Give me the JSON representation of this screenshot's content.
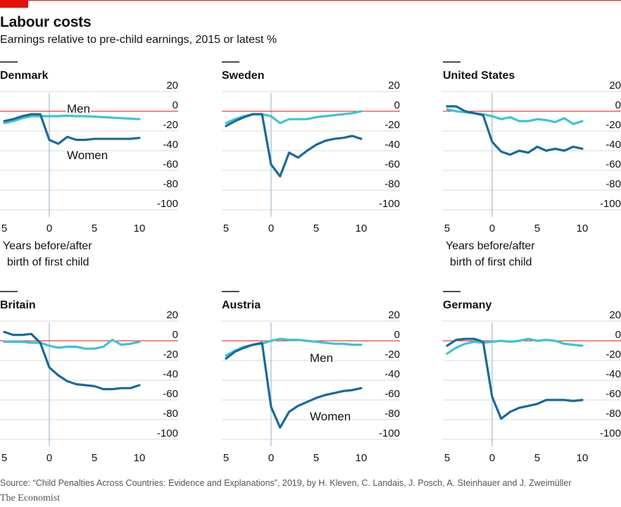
{
  "header": {
    "title": "Labour costs",
    "subtitle": "Earnings relative to pre-child earnings, 2015 or latest %"
  },
  "footer": {
    "source": "Source: “Child Penalties Across Countries: Evidence and Explanations”, 2019, by H. Kleven, C. Landais, J. Posch, A. Steinhauer and J. Zweimüller",
    "brand": "The Economist"
  },
  "colors": {
    "women": "#1a6a9a",
    "men": "#3ec3d5",
    "zero_line": "#e3120b",
    "event_line": "#a9bfd4",
    "grid": "#d9d9d9",
    "accent": "#e3120b"
  },
  "chart_data": [
    {
      "type": "line",
      "title": "Denmark",
      "xlabel": "Years before/after birth of first child",
      "x_ticks": [
        "5",
        "0",
        "5",
        "10"
      ],
      "xlim": [
        -5,
        10
      ],
      "ylim": [
        -100,
        20
      ],
      "y_ticks": [
        "20",
        "0",
        "-20",
        "-40",
        "-60",
        "-80",
        "-100"
      ],
      "annotations": [
        "Men",
        "Women"
      ],
      "series": [
        {
          "name": "Men",
          "x": [
            -5,
            -4,
            -3,
            -2,
            -1,
            0,
            1,
            2,
            3,
            4,
            5,
            6,
            7,
            8,
            9,
            10
          ],
          "values": [
            -12,
            -10,
            -7,
            -5,
            -5,
            -5,
            -5,
            -4.5,
            -5,
            -5,
            -5.5,
            -6,
            -6.5,
            -7,
            -7.5,
            -8
          ]
        },
        {
          "name": "Women",
          "x": [
            -5,
            -4,
            -3,
            -2,
            -1,
            0,
            1,
            2,
            3,
            4,
            5,
            6,
            7,
            8,
            9,
            10
          ],
          "values": [
            -10,
            -8,
            -5,
            -3,
            -3,
            -29,
            -33,
            -26,
            -29,
            -29,
            -28,
            -28,
            -28,
            -28,
            -28,
            -27
          ]
        }
      ]
    },
    {
      "type": "line",
      "title": "Sweden",
      "xlabel": "",
      "x_ticks": [
        "5",
        "0",
        "5",
        "10"
      ],
      "xlim": [
        -5,
        10
      ],
      "ylim": [
        -100,
        20
      ],
      "y_ticks": [
        "20",
        "0",
        "-20",
        "-40",
        "-60",
        "-80",
        "-100"
      ],
      "annotations": [],
      "series": [
        {
          "name": "Men",
          "x": [
            -5,
            -4,
            -3,
            -2,
            -1,
            0,
            1,
            2,
            3,
            4,
            5,
            6,
            7,
            8,
            9,
            10
          ],
          "values": [
            -12,
            -8,
            -5,
            -3,
            -3,
            -5,
            -12,
            -8,
            -8,
            -8,
            -6,
            -5,
            -4,
            -3,
            -2,
            0
          ]
        },
        {
          "name": "Women",
          "x": [
            -5,
            -4,
            -3,
            -2,
            -1,
            0,
            1,
            2,
            3,
            4,
            5,
            6,
            7,
            8,
            9,
            10
          ],
          "values": [
            -15,
            -10,
            -6,
            -3,
            -3,
            -54,
            -66,
            -42,
            -47,
            -40,
            -34,
            -30,
            -28,
            -27,
            -25,
            -28
          ]
        }
      ]
    },
    {
      "type": "line",
      "title": "United States",
      "xlabel": "Years before/after birth of first child",
      "x_ticks": [
        "5",
        "0",
        "5",
        "10"
      ],
      "xlim": [
        -5,
        10
      ],
      "ylim": [
        -100,
        20
      ],
      "y_ticks": [
        "20",
        "0",
        "-20",
        "-40",
        "-60",
        "-80",
        "-100"
      ],
      "annotations": [],
      "series": [
        {
          "name": "Men",
          "x": [
            -5,
            -4,
            -3,
            -2,
            -1,
            0,
            1,
            2,
            3,
            4,
            5,
            6,
            7,
            8,
            9,
            10
          ],
          "values": [
            2,
            0,
            -1,
            -2,
            -3,
            -5,
            -8,
            -6,
            -10,
            -10,
            -8,
            -9,
            -11,
            -7,
            -13,
            -10
          ]
        },
        {
          "name": "Women",
          "x": [
            -5,
            -4,
            -3,
            -2,
            -1,
            0,
            1,
            2,
            3,
            4,
            5,
            6,
            7,
            8,
            9,
            10
          ],
          "values": [
            5,
            5,
            0,
            -2,
            -4,
            -31,
            -41,
            -44,
            -40,
            -42,
            -36,
            -40,
            -38,
            -40,
            -36,
            -38
          ]
        }
      ]
    },
    {
      "type": "line",
      "title": "Britain",
      "xlabel": "",
      "x_ticks": [
        "5",
        "0",
        "5",
        "10"
      ],
      "xlim": [
        -5,
        10
      ],
      "ylim": [
        -100,
        20
      ],
      "y_ticks": [
        "20",
        "0",
        "-20",
        "-40",
        "-60",
        "-80",
        "-100"
      ],
      "annotations": [],
      "series": [
        {
          "name": "Men",
          "x": [
            -5,
            -4,
            -3,
            -2,
            -1,
            0,
            1,
            2,
            3,
            4,
            5,
            6,
            7,
            8,
            9,
            10
          ],
          "values": [
            -1,
            -1,
            -1,
            -2,
            -2,
            -5,
            -7,
            -6,
            -6,
            -8,
            -8,
            -6,
            1,
            -4,
            -3,
            -1
          ]
        },
        {
          "name": "Women",
          "x": [
            -5,
            -4,
            -3,
            -2,
            -1,
            0,
            1,
            2,
            3,
            4,
            5,
            6,
            7,
            8,
            9,
            10
          ],
          "values": [
            9,
            6,
            6,
            7,
            -2,
            -27,
            -35,
            -41,
            -44,
            -45,
            -46,
            -49,
            -49,
            -48,
            -48,
            -45
          ]
        }
      ]
    },
    {
      "type": "line",
      "title": "Austria",
      "xlabel": "",
      "x_ticks": [
        "5",
        "0",
        "5",
        "10"
      ],
      "xlim": [
        -5,
        10
      ],
      "ylim": [
        -100,
        20
      ],
      "y_ticks": [
        "20",
        "0",
        "-20",
        "-40",
        "-60",
        "-80",
        "-100"
      ],
      "annotations": [
        "Men",
        "Women"
      ],
      "series": [
        {
          "name": "Men",
          "x": [
            -5,
            -4,
            -3,
            -2,
            -1,
            0,
            1,
            2,
            3,
            4,
            5,
            6,
            7,
            8,
            9,
            10
          ],
          "values": [
            -15,
            -10,
            -6,
            -4,
            -3,
            0,
            2,
            1,
            1,
            0,
            -1,
            -2,
            -3,
            -3,
            -4,
            -4
          ]
        },
        {
          "name": "Women",
          "x": [
            -5,
            -4,
            -3,
            -2,
            -1,
            0,
            1,
            2,
            3,
            4,
            5,
            6,
            7,
            8,
            9,
            10
          ],
          "values": [
            -18,
            -11,
            -7,
            -4,
            -2,
            -67,
            -88,
            -72,
            -66,
            -62,
            -58,
            -55,
            -53,
            -51,
            -50,
            -48
          ]
        }
      ]
    },
    {
      "type": "line",
      "title": "Germany",
      "xlabel": "",
      "x_ticks": [
        "5",
        "0",
        "5",
        "10"
      ],
      "xlim": [
        -5,
        10
      ],
      "ylim": [
        -100,
        20
      ],
      "y_ticks": [
        "20",
        "0",
        "-20",
        "-40",
        "-60",
        "-80",
        "-100"
      ],
      "annotations": [],
      "series": [
        {
          "name": "Men",
          "x": [
            -5,
            -4,
            -3,
            -2,
            -1,
            0,
            1,
            2,
            3,
            4,
            5,
            6,
            7,
            8,
            9,
            10
          ],
          "values": [
            -13,
            -7,
            -3,
            -1,
            -2,
            -1,
            0,
            -1,
            0,
            2,
            0,
            1,
            0,
            -3,
            -4,
            -5
          ]
        },
        {
          "name": "Women",
          "x": [
            -5,
            -4,
            -3,
            -2,
            -1,
            0,
            1,
            2,
            3,
            4,
            5,
            6,
            7,
            8,
            9,
            10
          ],
          "values": [
            -5,
            1,
            2,
            2,
            -1,
            -57,
            -79,
            -72,
            -68,
            -66,
            -64,
            -60,
            -60,
            -60,
            -61,
            -60
          ]
        }
      ]
    }
  ]
}
